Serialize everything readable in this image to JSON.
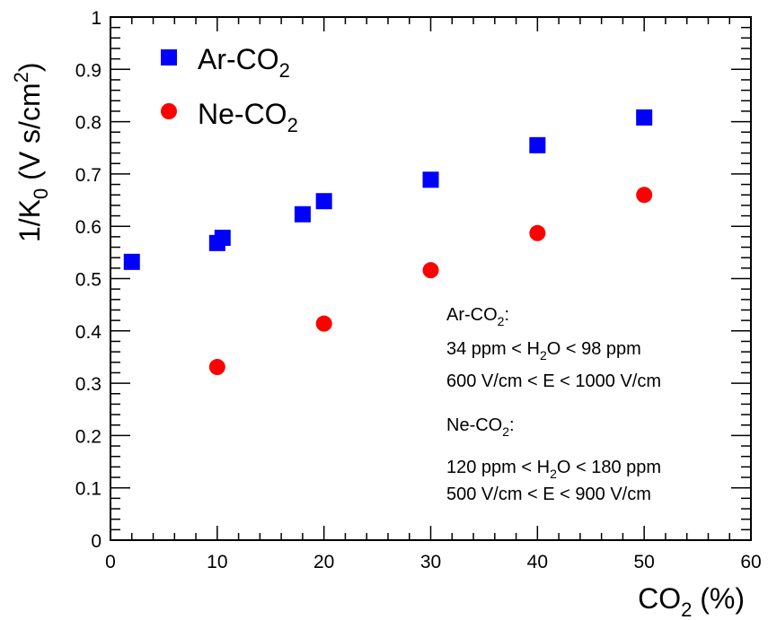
{
  "chart_data": {
    "type": "scatter",
    "xlabel": "CO",
    "xlabel_sub": "2",
    "xlabel_tail": " (%)",
    "ylabel": "1/K",
    "ylabel_sub": "0",
    "ylabel_tail": " (V s/cm",
    "ylabel_sup": "2",
    "ylabel_close": ")",
    "xlim": [
      0,
      60
    ],
    "ylim": [
      0,
      1
    ],
    "x_ticks": [
      "0",
      "10",
      "20",
      "30",
      "40",
      "50",
      "60"
    ],
    "y_ticks": [
      "0",
      "0.1",
      "0.2",
      "0.3",
      "0.4",
      "0.5",
      "0.6",
      "0.7",
      "0.8",
      "0.9",
      "1"
    ],
    "legend_position": "top-left",
    "grid": false,
    "series": [
      {
        "name": "Ar-CO",
        "name_sub": "2",
        "marker": "square",
        "color": "#0000ff",
        "x": [
          2,
          10,
          10.5,
          18,
          20,
          30,
          40,
          50
        ],
        "y": [
          0.532,
          0.568,
          0.578,
          0.623,
          0.648,
          0.689,
          0.755,
          0.808
        ]
      },
      {
        "name": "Ne-CO",
        "name_sub": "2",
        "marker": "circle",
        "color": "#ff0000",
        "x": [
          10,
          20,
          30,
          40,
          50
        ],
        "y": [
          0.331,
          0.414,
          0.516,
          0.587,
          0.66
        ]
      }
    ],
    "annotations": {
      "ar_heading": "Ar-CO",
      "ar_heading_sub": "2",
      "ar_heading_tail": ":",
      "ar_line1_a": "34 ppm < H",
      "ar_line1_sub": "2",
      "ar_line1_b": "O <  98 ppm",
      "ar_line2": "600 V/cm < E < 1000 V/cm",
      "ne_heading": "Ne-CO",
      "ne_heading_sub": "2",
      "ne_heading_tail": ":",
      "ne_line1_a": "120 ppm < H",
      "ne_line1_sub": "2",
      "ne_line1_b": "O < 180 ppm",
      "ne_line2": "500 V/cm < E < 900 V/cm"
    }
  }
}
